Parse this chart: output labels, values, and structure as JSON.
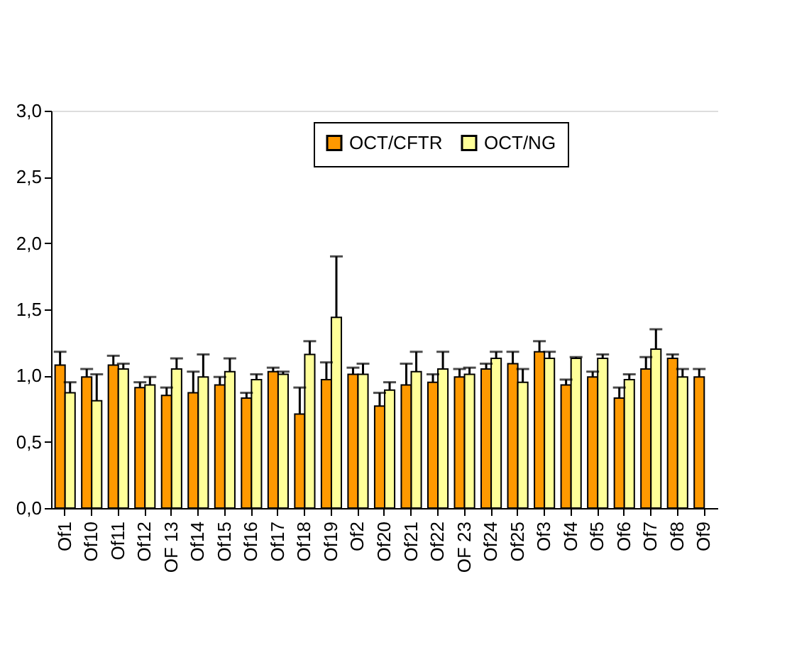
{
  "chart_data": {
    "type": "bar",
    "categories": [
      "Of1",
      "Of10",
      "Of11",
      "Of12",
      "OF 13",
      "Of14",
      "Of15",
      "Of16",
      "Of17",
      "Of18",
      "Of19",
      "Of2",
      "Of20",
      "Of21",
      "Of22",
      "OF 23",
      "Of24",
      "Of25",
      "Of3",
      "Of4",
      "Of5",
      "Of6",
      "Of7",
      "Of8",
      "Of9"
    ],
    "series": [
      {
        "name": "OCT/CFTR",
        "color": "#ff9900",
        "values": [
          1.08,
          0.99,
          1.08,
          0.91,
          0.85,
          0.87,
          0.93,
          0.83,
          1.03,
          0.71,
          0.97,
          1.01,
          0.77,
          0.93,
          0.95,
          0.99,
          1.05,
          1.09,
          1.18,
          0.93,
          0.99,
          0.83,
          1.05,
          1.13,
          0.99
        ],
        "errors": [
          [
            1.08,
            1.18
          ],
          [
            0.99,
            1.05
          ],
          [
            1.08,
            1.15
          ],
          [
            0.91,
            0.95
          ],
          [
            0.85,
            0.91
          ],
          [
            0.87,
            1.03
          ],
          [
            0.93,
            0.99
          ],
          [
            0.83,
            0.87
          ],
          [
            1.03,
            1.06
          ],
          [
            0.71,
            0.91
          ],
          [
            0.97,
            1.1
          ],
          [
            1.01,
            1.06
          ],
          [
            0.77,
            0.87
          ],
          [
            0.93,
            1.09
          ],
          [
            0.95,
            1.01
          ],
          [
            0.99,
            1.05
          ],
          [
            1.05,
            1.09
          ],
          [
            1.09,
            1.18
          ],
          [
            1.18,
            1.26
          ],
          [
            0.93,
            0.97
          ],
          [
            0.99,
            1.03
          ],
          [
            0.83,
            0.91
          ],
          [
            1.05,
            1.14
          ],
          [
            1.13,
            1.16
          ],
          [
            0.99,
            1.05
          ]
        ]
      },
      {
        "name": "OCT/NG",
        "color": "#ffff99",
        "values": [
          0.87,
          0.81,
          1.05,
          0.93,
          1.05,
          0.99,
          1.03,
          0.97,
          1.01,
          1.16,
          1.44,
          1.01,
          0.89,
          1.03,
          1.05,
          1.01,
          1.13,
          0.95,
          1.13,
          1.13,
          1.13,
          0.97,
          1.2,
          0.99,
          null
        ],
        "errors": [
          [
            0.87,
            0.95
          ],
          [
            0.81,
            1.01
          ],
          [
            1.05,
            1.09
          ],
          [
            0.93,
            0.99
          ],
          [
            1.05,
            1.13
          ],
          [
            0.99,
            1.16
          ],
          [
            1.03,
            1.13
          ],
          [
            0.97,
            1.01
          ],
          [
            1.01,
            1.03
          ],
          [
            1.16,
            1.26
          ],
          [
            1.44,
            1.9
          ],
          [
            1.01,
            1.09
          ],
          [
            0.89,
            0.95
          ],
          [
            1.03,
            1.18
          ],
          [
            1.05,
            1.18
          ],
          [
            1.01,
            1.06
          ],
          [
            1.13,
            1.18
          ],
          [
            0.95,
            1.05
          ],
          [
            1.13,
            1.18
          ],
          [
            1.13,
            1.14
          ],
          [
            1.13,
            1.16
          ],
          [
            0.97,
            1.01
          ],
          [
            1.2,
            1.35
          ],
          [
            0.99,
            1.05
          ],
          null
        ]
      }
    ],
    "ylim": [
      0,
      3
    ],
    "yticks": [
      {
        "value": 0,
        "label": "0,0"
      },
      {
        "value": 0.5,
        "label": "0,5"
      },
      {
        "value": 1,
        "label": "1,0"
      },
      {
        "value": 1.5,
        "label": "1,5"
      },
      {
        "value": 2,
        "label": "2,0"
      },
      {
        "value": 2.5,
        "label": "2,5"
      },
      {
        "value": 3,
        "label": "3,0"
      }
    ],
    "grid": false,
    "legend": "top right"
  }
}
